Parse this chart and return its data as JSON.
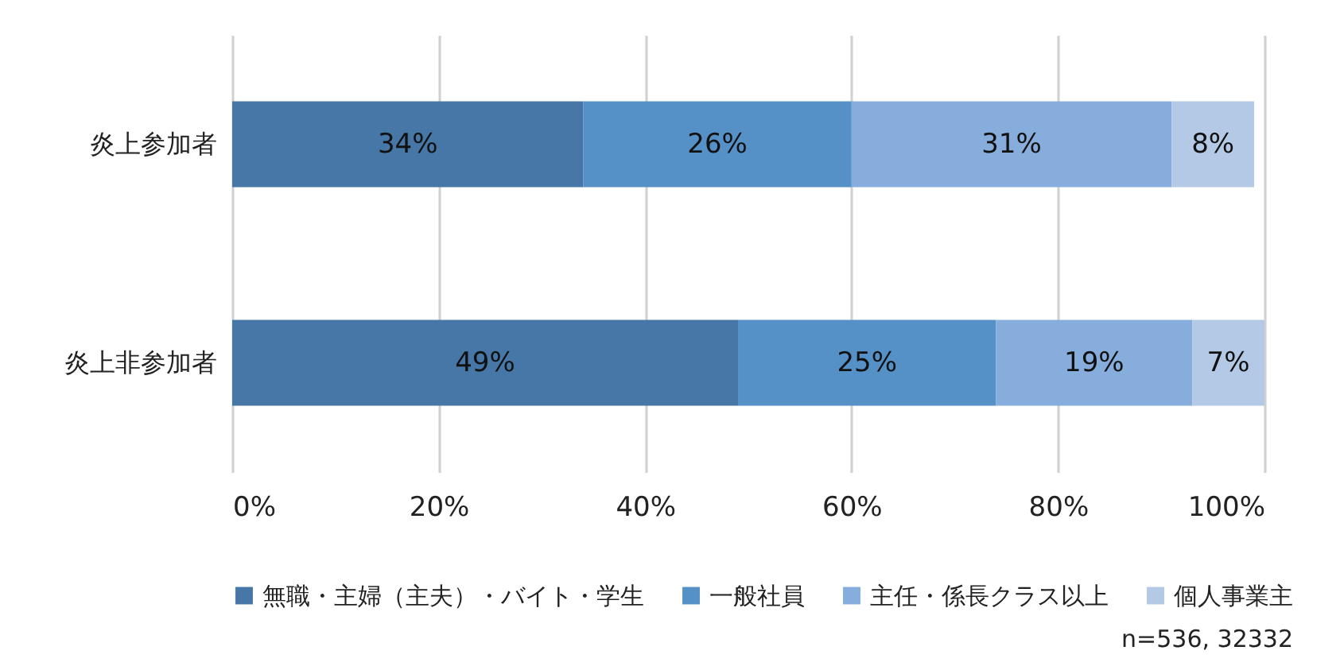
{
  "chart_data": {
    "type": "bar",
    "orientation": "horizontal",
    "stacked": true,
    "categories": [
      "炎上参加者",
      "炎上非参加者"
    ],
    "series": [
      {
        "name": "無職・主婦（主夫）・バイト・学生",
        "color": "#4677a6",
        "values": [
          34,
          49
        ],
        "value_labels": [
          "34%",
          "49%"
        ]
      },
      {
        "name": "一般社員",
        "color": "#5590c6",
        "values": [
          26,
          25
        ],
        "value_labels": [
          "26%",
          "25%"
        ]
      },
      {
        "name": "主任・係長クラス以上",
        "color": "#86addb",
        "values": [
          31,
          19
        ],
        "value_labels": [
          "31%",
          "19%"
        ]
      },
      {
        "name": "個人事業主",
        "color": "#b4c9e6",
        "values": [
          8,
          7
        ],
        "value_labels": [
          "8%",
          "7%"
        ]
      }
    ],
    "xlim": [
      0,
      100
    ],
    "xticks": [
      {
        "value": 0,
        "label": "0%"
      },
      {
        "value": 20,
        "label": "20%"
      },
      {
        "value": 40,
        "label": "40%"
      },
      {
        "value": 60,
        "label": "60%"
      },
      {
        "value": 80,
        "label": "80%"
      },
      {
        "value": 100,
        "label": "100%"
      }
    ],
    "grid": "x",
    "legend": "bottom",
    "annotations": [
      "n=536, 32332"
    ]
  }
}
